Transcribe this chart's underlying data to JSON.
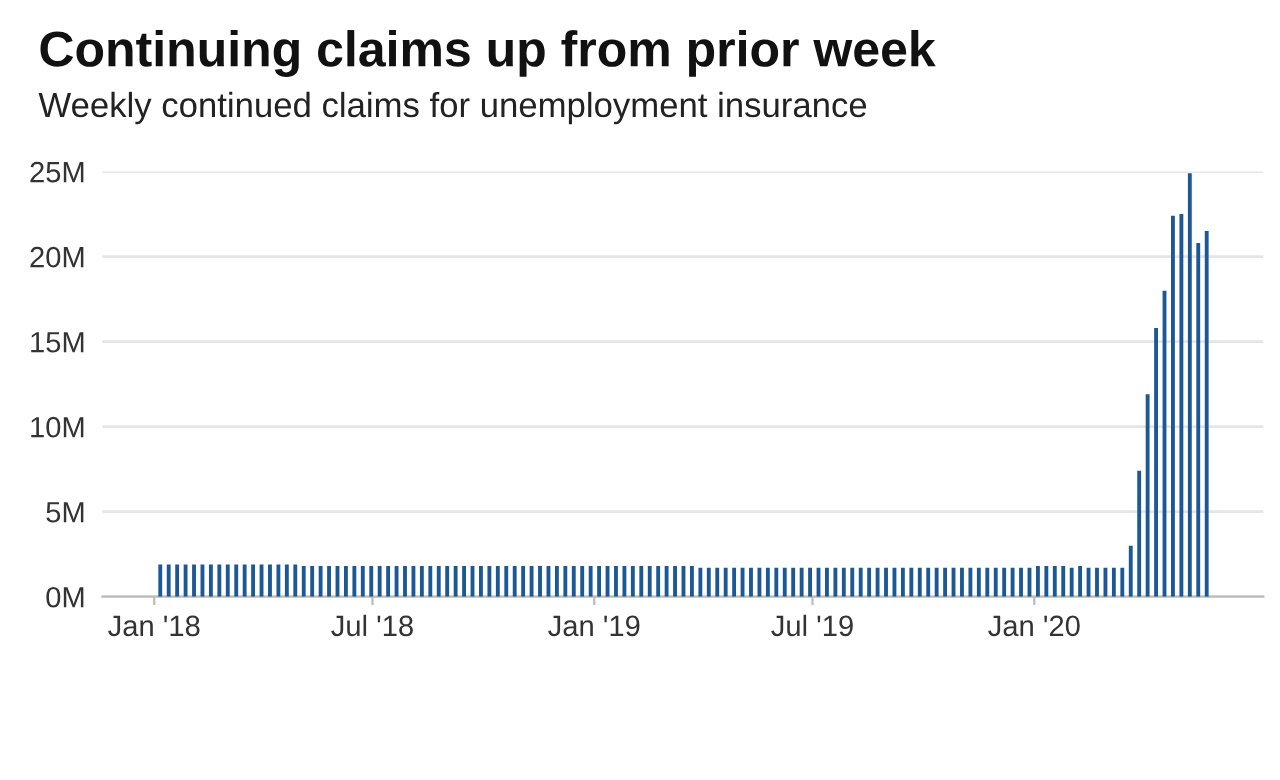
{
  "chart_data": {
    "type": "bar",
    "title": "Continuing claims up from prior week",
    "subtitle": "Weekly continued claims for unemployment insurance",
    "x": [
      "2018-01-06",
      "2018-01-13",
      "2018-01-20",
      "2018-01-27",
      "2018-02-03",
      "2018-02-10",
      "2018-02-17",
      "2018-02-24",
      "2018-03-03",
      "2018-03-10",
      "2018-03-17",
      "2018-03-24",
      "2018-03-31",
      "2018-04-07",
      "2018-04-14",
      "2018-04-21",
      "2018-04-28",
      "2018-05-05",
      "2018-05-12",
      "2018-05-19",
      "2018-05-26",
      "2018-06-02",
      "2018-06-09",
      "2018-06-16",
      "2018-06-23",
      "2018-06-30",
      "2018-07-07",
      "2018-07-14",
      "2018-07-21",
      "2018-07-28",
      "2018-08-04",
      "2018-08-11",
      "2018-08-18",
      "2018-08-25",
      "2018-09-01",
      "2018-09-08",
      "2018-09-15",
      "2018-09-22",
      "2018-09-29",
      "2018-10-06",
      "2018-10-13",
      "2018-10-20",
      "2018-10-27",
      "2018-11-03",
      "2018-11-10",
      "2018-11-17",
      "2018-11-24",
      "2018-12-01",
      "2018-12-08",
      "2018-12-15",
      "2018-12-22",
      "2018-12-29",
      "2019-01-05",
      "2019-01-12",
      "2019-01-19",
      "2019-01-26",
      "2019-02-02",
      "2019-02-09",
      "2019-02-16",
      "2019-02-23",
      "2019-03-02",
      "2019-03-09",
      "2019-03-16",
      "2019-03-23",
      "2019-03-30",
      "2019-04-06",
      "2019-04-13",
      "2019-04-20",
      "2019-04-27",
      "2019-05-04",
      "2019-05-11",
      "2019-05-18",
      "2019-05-25",
      "2019-06-01",
      "2019-06-08",
      "2019-06-15",
      "2019-06-22",
      "2019-06-29",
      "2019-07-06",
      "2019-07-13",
      "2019-07-20",
      "2019-07-27",
      "2019-08-03",
      "2019-08-10",
      "2019-08-17",
      "2019-08-24",
      "2019-08-31",
      "2019-09-07",
      "2019-09-14",
      "2019-09-21",
      "2019-09-28",
      "2019-10-05",
      "2019-10-12",
      "2019-10-19",
      "2019-10-26",
      "2019-11-02",
      "2019-11-09",
      "2019-11-16",
      "2019-11-23",
      "2019-11-30",
      "2019-12-07",
      "2019-12-14",
      "2019-12-21",
      "2019-12-28",
      "2020-01-04",
      "2020-01-11",
      "2020-01-18",
      "2020-01-25",
      "2020-02-01",
      "2020-02-08",
      "2020-02-15",
      "2020-02-22",
      "2020-02-29",
      "2020-03-07",
      "2020-03-14",
      "2020-03-21",
      "2020-03-28",
      "2020-04-04",
      "2020-04-11",
      "2020-04-18",
      "2020-04-25",
      "2020-05-02",
      "2020-05-09",
      "2020-05-16",
      "2020-05-23"
    ],
    "values": [
      1.9,
      1.9,
      1.9,
      1.9,
      1.9,
      1.9,
      1.9,
      1.9,
      1.9,
      1.9,
      1.9,
      1.9,
      1.9,
      1.9,
      1.9,
      1.9,
      1.9,
      1.8,
      1.8,
      1.8,
      1.8,
      1.8,
      1.8,
      1.8,
      1.8,
      1.8,
      1.8,
      1.8,
      1.8,
      1.8,
      1.8,
      1.8,
      1.8,
      1.8,
      1.8,
      1.8,
      1.8,
      1.8,
      1.8,
      1.8,
      1.8,
      1.8,
      1.8,
      1.8,
      1.8,
      1.8,
      1.8,
      1.8,
      1.8,
      1.8,
      1.8,
      1.8,
      1.8,
      1.8,
      1.8,
      1.8,
      1.8,
      1.8,
      1.8,
      1.8,
      1.8,
      1.8,
      1.8,
      1.8,
      1.7,
      1.7,
      1.7,
      1.7,
      1.7,
      1.7,
      1.7,
      1.7,
      1.7,
      1.7,
      1.7,
      1.7,
      1.7,
      1.7,
      1.7,
      1.7,
      1.7,
      1.7,
      1.7,
      1.7,
      1.7,
      1.7,
      1.7,
      1.7,
      1.7,
      1.7,
      1.7,
      1.7,
      1.7,
      1.7,
      1.7,
      1.7,
      1.7,
      1.7,
      1.7,
      1.7,
      1.7,
      1.7,
      1.7,
      1.7,
      1.8,
      1.8,
      1.8,
      1.8,
      1.7,
      1.8,
      1.7,
      1.7,
      1.7,
      1.7,
      1.7,
      3.0,
      7.4,
      11.9,
      15.8,
      18.0,
      22.4,
      22.5,
      24.9,
      20.8,
      21.5
    ],
    "color": "#1c5796",
    "xlim": [
      "2017-11-19",
      "2020-07-09"
    ],
    "xticks": [
      {
        "value": "2018-01-01",
        "label": "Jan '18"
      },
      {
        "value": "2018-07-01",
        "label": "Jul '18"
      },
      {
        "value": "2019-01-01",
        "label": "Jan '19"
      },
      {
        "value": "2019-07-01",
        "label": "Jul '19"
      },
      {
        "value": "2020-01-01",
        "label": "Jan '20"
      }
    ],
    "ylim": [
      0,
      25
    ],
    "yticks": [
      {
        "value": 0,
        "label": "0M"
      },
      {
        "value": 5,
        "label": "5M"
      },
      {
        "value": 10,
        "label": "10M"
      },
      {
        "value": 15,
        "label": "15M"
      },
      {
        "value": 20,
        "label": "20M"
      },
      {
        "value": 25,
        "label": "25M"
      }
    ],
    "grid": "y"
  }
}
